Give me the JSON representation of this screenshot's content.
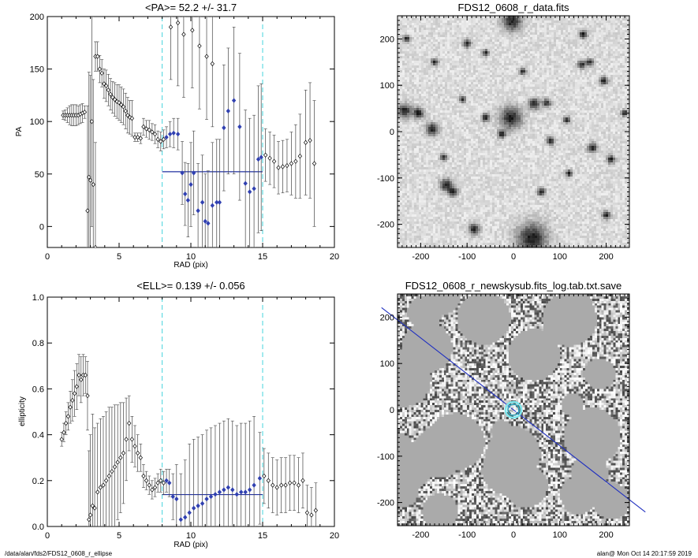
{
  "footer": {
    "path": "/data/alan/fds2/FDS12_0608_r_ellipse",
    "stamp": "alan@  Mon Oct 14 20:17:59 2019"
  },
  "chart_data": [
    {
      "id": "pa",
      "type": "scatter",
      "title": "<PA>=  52.2 +/-  31.7",
      "xlabel": "RAD (pix)",
      "ylabel": "PA",
      "xlim": [
        0,
        20
      ],
      "ylim": [
        -20,
        200
      ],
      "xticks": [
        0,
        5,
        10,
        15,
        20
      ],
      "yticks": [
        0,
        50,
        100,
        150,
        200
      ],
      "vlines": [
        8,
        15
      ],
      "mean_line": {
        "x": [
          8,
          15
        ],
        "y": 52.2
      },
      "points": [
        [
          1.1,
          106,
          4
        ],
        [
          1.25,
          106,
          5
        ],
        [
          1.4,
          106,
          7
        ],
        [
          1.55,
          106,
          9
        ],
        [
          1.7,
          106,
          10
        ],
        [
          1.85,
          106,
          10
        ],
        [
          2.0,
          106,
          10
        ],
        [
          2.15,
          106,
          9
        ],
        [
          2.3,
          107,
          9
        ],
        [
          2.45,
          108,
          9
        ],
        [
          2.6,
          109,
          6
        ],
        [
          2.8,
          15,
          100
        ],
        [
          2.9,
          47,
          100
        ],
        [
          3.0,
          44,
          100
        ],
        [
          3.1,
          100,
          100
        ],
        [
          3.2,
          40,
          100
        ],
        [
          3.35,
          -20,
          100
        ],
        [
          3.35,
          162,
          14
        ],
        [
          3.5,
          162,
          14
        ],
        [
          3.65,
          150,
          13
        ],
        [
          3.8,
          146,
          13
        ],
        [
          3.95,
          136,
          14
        ],
        [
          4.1,
          134,
          15
        ],
        [
          4.25,
          130,
          15
        ],
        [
          4.4,
          126,
          15
        ],
        [
          4.55,
          123,
          15
        ],
        [
          4.7,
          121,
          16
        ],
        [
          4.85,
          119,
          16
        ],
        [
          5.0,
          118,
          17
        ],
        [
          5.15,
          116,
          17
        ],
        [
          5.3,
          114,
          17
        ],
        [
          5.45,
          110,
          17
        ],
        [
          5.6,
          106,
          17
        ],
        [
          5.75,
          104,
          16
        ],
        [
          5.9,
          103,
          17
        ],
        [
          6.1,
          85,
          4
        ],
        [
          6.3,
          85,
          4
        ],
        [
          6.5,
          84,
          5
        ],
        [
          6.7,
          95,
          8
        ],
        [
          6.9,
          93,
          8
        ],
        [
          7.1,
          92,
          9
        ],
        [
          7.3,
          90,
          8
        ],
        [
          7.5,
          88,
          9
        ],
        [
          7.7,
          83,
          8
        ],
        [
          7.9,
          81,
          9
        ],
        [
          8.1,
          83,
          9
        ]
      ],
      "points_blue": [
        [
          8.3,
          85,
          10
        ],
        [
          8.55,
          88,
          12
        ],
        [
          8.8,
          89,
          14
        ],
        [
          9.1,
          88,
          15
        ],
        [
          9.4,
          51,
          30
        ],
        [
          9.6,
          31,
          30
        ],
        [
          9.8,
          25,
          35
        ],
        [
          10.0,
          40,
          40
        ],
        [
          10.2,
          51,
          40
        ],
        [
          10.5,
          15,
          45
        ],
        [
          10.8,
          23,
          45
        ],
        [
          11.0,
          5,
          45
        ],
        [
          11.2,
          3,
          50
        ],
        [
          11.5,
          20,
          60
        ],
        [
          11.8,
          23,
          60
        ],
        [
          12.0,
          23,
          60
        ],
        [
          12.3,
          94,
          60
        ],
        [
          12.6,
          110,
          60
        ],
        [
          13.0,
          120,
          70
        ],
        [
          13.4,
          95,
          70
        ],
        [
          13.8,
          41,
          70
        ],
        [
          14.1,
          33,
          70
        ],
        [
          14.4,
          36,
          70
        ],
        [
          14.7,
          64,
          70
        ],
        [
          14.9,
          66,
          70
        ]
      ],
      "points_upper": [
        [
          8.6,
          190,
          50
        ],
        [
          9.1,
          194,
          60
        ],
        [
          9.5,
          183,
          60
        ],
        [
          10.1,
          187,
          55
        ],
        [
          10.6,
          172,
          60
        ],
        [
          11.1,
          162,
          60
        ],
        [
          11.5,
          155,
          60
        ]
      ],
      "points_outer": [
        [
          15.2,
          68,
          25
        ],
        [
          15.5,
          65,
          25
        ],
        [
          15.8,
          62,
          25
        ],
        [
          16.1,
          56,
          25
        ],
        [
          16.4,
          57,
          25
        ],
        [
          16.7,
          58,
          25
        ],
        [
          17.0,
          60,
          30
        ],
        [
          17.3,
          62,
          35
        ],
        [
          17.6,
          67,
          40
        ],
        [
          18.0,
          80,
          50
        ],
        [
          18.3,
          82,
          55
        ],
        [
          18.6,
          60,
          60
        ]
      ]
    },
    {
      "id": "ell",
      "type": "scatter",
      "title": "<ELL>= 0.139 +/-  0.056",
      "xlabel": "RAD (pix)",
      "ylabel": "ellipticity",
      "xlim": [
        0,
        20
      ],
      "ylim": [
        0,
        1
      ],
      "xticks": [
        0,
        5,
        10,
        15,
        20
      ],
      "yticks": [
        0.0,
        0.2,
        0.4,
        0.6,
        0.8,
        1.0
      ],
      "ytick_labels": [
        "0.0",
        "0.2",
        "0.4",
        "0.6",
        "0.8",
        "1.0"
      ],
      "vlines": [
        8,
        15
      ],
      "mean_line": {
        "x": [
          8,
          15
        ],
        "y": 0.139
      },
      "points": [
        [
          1.0,
          0.38,
          0.03
        ],
        [
          1.15,
          0.41,
          0.04
        ],
        [
          1.3,
          0.45,
          0.05
        ],
        [
          1.45,
          0.48,
          0.06
        ],
        [
          1.6,
          0.52,
          0.07
        ],
        [
          1.75,
          0.55,
          0.09
        ],
        [
          1.9,
          0.58,
          0.1
        ],
        [
          2.05,
          0.61,
          0.1
        ],
        [
          2.2,
          0.66,
          0.09
        ],
        [
          2.35,
          0.64,
          0.1
        ],
        [
          2.5,
          0.66,
          0.09
        ],
        [
          2.65,
          0.66,
          0.08
        ],
        [
          2.8,
          0.57,
          0.15
        ],
        [
          2.9,
          0.03,
          0.3
        ],
        [
          3.0,
          0.05,
          0.35
        ],
        [
          3.15,
          0.09,
          0.4
        ],
        [
          3.3,
          0.08,
          0.35
        ],
        [
          3.5,
          0.15,
          0.3
        ],
        [
          3.7,
          0.17,
          0.3
        ],
        [
          3.9,
          0.18,
          0.3
        ],
        [
          4.1,
          0.2,
          0.3
        ],
        [
          4.3,
          0.22,
          0.3
        ],
        [
          4.5,
          0.24,
          0.28
        ],
        [
          4.7,
          0.26,
          0.27
        ],
        [
          4.9,
          0.28,
          0.25
        ],
        [
          5.1,
          0.3,
          0.24
        ],
        [
          5.3,
          0.32,
          0.22
        ],
        [
          5.5,
          0.38,
          0.18
        ],
        [
          5.7,
          0.45,
          0.12
        ],
        [
          5.9,
          0.38,
          0.1
        ],
        [
          6.1,
          0.35,
          0.09
        ],
        [
          6.3,
          0.32,
          0.08
        ],
        [
          6.5,
          0.3,
          0.06
        ],
        [
          6.7,
          0.22,
          0.05
        ],
        [
          6.9,
          0.2,
          0.04
        ],
        [
          7.1,
          0.18,
          0.04
        ],
        [
          7.3,
          0.16,
          0.04
        ],
        [
          7.5,
          0.17,
          0.04
        ],
        [
          7.7,
          0.19,
          0.04
        ],
        [
          7.9,
          0.2,
          0.05
        ],
        [
          8.1,
          0.19,
          0.05
        ]
      ],
      "points_blue": [
        [
          8.3,
          0.2,
          0.05
        ],
        [
          8.5,
          0.19,
          0.06
        ],
        [
          8.75,
          0.13,
          0.1
        ],
        [
          9.0,
          0.12,
          0.15
        ],
        [
          9.3,
          0.03,
          0.2
        ],
        [
          9.6,
          0.04,
          0.25
        ],
        [
          9.9,
          0.06,
          0.3
        ],
        [
          10.2,
          0.08,
          0.3
        ],
        [
          10.5,
          0.09,
          0.3
        ],
        [
          10.8,
          0.1,
          0.3
        ],
        [
          11.1,
          0.12,
          0.3
        ],
        [
          11.4,
          0.13,
          0.3
        ],
        [
          11.7,
          0.14,
          0.3
        ],
        [
          12.0,
          0.15,
          0.3
        ],
        [
          12.3,
          0.16,
          0.3
        ],
        [
          12.6,
          0.17,
          0.3
        ],
        [
          12.9,
          0.16,
          0.3
        ],
        [
          13.2,
          0.14,
          0.3
        ],
        [
          13.5,
          0.15,
          0.3
        ],
        [
          13.8,
          0.15,
          0.3
        ],
        [
          14.1,
          0.16,
          0.3
        ],
        [
          14.4,
          0.18,
          0.3
        ],
        [
          14.8,
          0.21,
          0.2
        ]
      ],
      "points_outer": [
        [
          15.1,
          0.22,
          0.12
        ],
        [
          15.4,
          0.2,
          0.12
        ],
        [
          15.7,
          0.18,
          0.12
        ],
        [
          16.0,
          0.17,
          0.12
        ],
        [
          16.3,
          0.18,
          0.12
        ],
        [
          16.6,
          0.18,
          0.12
        ],
        [
          16.9,
          0.19,
          0.12
        ],
        [
          17.2,
          0.19,
          0.12
        ],
        [
          17.5,
          0.18,
          0.12
        ],
        [
          17.8,
          0.2,
          0.12
        ],
        [
          18.1,
          0.06,
          0.12
        ],
        [
          18.4,
          0.05,
          0.12
        ],
        [
          18.7,
          0.07,
          0.12
        ]
      ]
    },
    {
      "id": "img-data",
      "type": "heatmap",
      "title": "FDS12_0608_r_data.fits",
      "xlim": [
        -250,
        250
      ],
      "ylim": [
        -250,
        250
      ],
      "xticks": [
        -200,
        -100,
        0,
        100,
        200
      ],
      "yticks": [
        -200,
        -100,
        0,
        100,
        200
      ],
      "sources": [
        [
          -3,
          238,
          14
        ],
        [
          -5,
          30,
          16
        ],
        [
          40,
          -230,
          22
        ],
        [
          -235,
          45,
          10
        ],
        [
          -205,
          40,
          8
        ],
        [
          -175,
          5,
          9
        ],
        [
          -145,
          -115,
          9
        ],
        [
          -130,
          -130,
          7
        ],
        [
          -85,
          -210,
          8
        ],
        [
          -60,
          30,
          6
        ],
        [
          45,
          60,
          8
        ],
        [
          72,
          62,
          6
        ],
        [
          148,
          145,
          6
        ],
        [
          165,
          150,
          5
        ],
        [
          195,
          110,
          6
        ],
        [
          115,
          25,
          5
        ],
        [
          170,
          -35,
          7
        ],
        [
          210,
          -60,
          6
        ],
        [
          60,
          -130,
          6
        ],
        [
          120,
          -90,
          5
        ],
        [
          -100,
          190,
          6
        ],
        [
          -60,
          170,
          5
        ],
        [
          20,
          130,
          5
        ],
        [
          -25,
          -5,
          6
        ],
        [
          200,
          -180,
          6
        ],
        [
          -230,
          200,
          5
        ],
        [
          80,
          -20,
          6
        ],
        [
          -150,
          -55,
          5
        ],
        [
          -110,
          70,
          5
        ],
        [
          240,
          40,
          5
        ],
        [
          150,
          210,
          6
        ],
        [
          -170,
          150,
          5
        ]
      ]
    },
    {
      "id": "img-mask",
      "type": "heatmap",
      "title": "FDS12_0608_r_newskysub.fits_log.tab.txt.save",
      "xlim": [
        -250,
        250
      ],
      "ylim": [
        -250,
        250
      ],
      "xticks": [
        -200,
        -100,
        0,
        100,
        200
      ],
      "yticks": [
        -200,
        -100,
        0,
        100,
        200
      ],
      "pa_line_deg": 52.2,
      "ellipse": {
        "x": 0,
        "y": 0,
        "r": 12
      }
    }
  ]
}
